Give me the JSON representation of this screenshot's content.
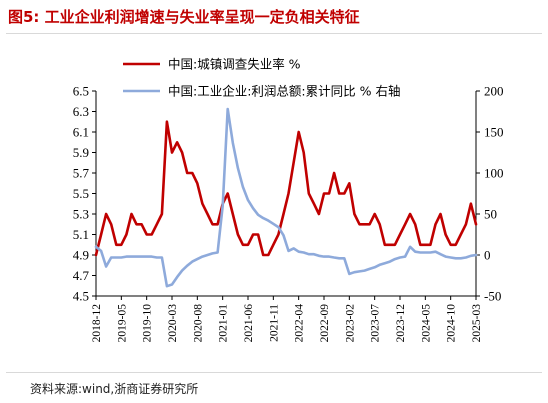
{
  "figure_title": "图5:   工业企业利润增速与失业率呈现一定负相关特征",
  "source": "资料来源:wind,浙商证券研究所",
  "colors": {
    "title": "#c00000",
    "unemployment": "#c00000",
    "profit": "#8eaadb"
  },
  "chart_data": {
    "type": "line",
    "x_ticks": [
      "2018-12",
      "2019-05",
      "2019-10",
      "2020-03",
      "2020-08",
      "2021-01",
      "2021-06",
      "2021-11",
      "2022-04",
      "2022-09",
      "2023-02",
      "2023-07",
      "2023-12",
      "2024-05",
      "2024-10",
      "2025-03"
    ],
    "y_left": {
      "min": 4.5,
      "max": 6.5,
      "ticks": [
        4.5,
        4.7,
        4.9,
        5.1,
        5.3,
        5.5,
        5.7,
        5.9,
        6.1,
        6.3,
        6.5
      ]
    },
    "y_right": {
      "min": -50,
      "max": 200,
      "ticks": [
        -50,
        0,
        50,
        100,
        150,
        200
      ]
    },
    "grid": false,
    "legend_position": "top",
    "series": [
      {
        "name": "中国:城镇调查失业率 %",
        "axis": "left",
        "values": [
          {
            "x": "2018-12",
            "y": 4.9
          },
          {
            "x": "2019-01",
            "y": 5.1
          },
          {
            "x": "2019-02",
            "y": 5.3
          },
          {
            "x": "2019-03",
            "y": 5.2
          },
          {
            "x": "2019-04",
            "y": 5.0
          },
          {
            "x": "2019-05",
            "y": 5.0
          },
          {
            "x": "2019-06",
            "y": 5.1
          },
          {
            "x": "2019-07",
            "y": 5.3
          },
          {
            "x": "2019-08",
            "y": 5.2
          },
          {
            "x": "2019-09",
            "y": 5.2
          },
          {
            "x": "2019-10",
            "y": 5.1
          },
          {
            "x": "2019-11",
            "y": 5.1
          },
          {
            "x": "2019-12",
            "y": 5.2
          },
          {
            "x": "2020-01",
            "y": 5.3
          },
          {
            "x": "2020-02",
            "y": 6.2
          },
          {
            "x": "2020-03",
            "y": 5.9
          },
          {
            "x": "2020-04",
            "y": 6.0
          },
          {
            "x": "2020-05",
            "y": 5.9
          },
          {
            "x": "2020-06",
            "y": 5.7
          },
          {
            "x": "2020-07",
            "y": 5.7
          },
          {
            "x": "2020-08",
            "y": 5.6
          },
          {
            "x": "2020-09",
            "y": 5.4
          },
          {
            "x": "2020-10",
            "y": 5.3
          },
          {
            "x": "2020-11",
            "y": 5.2
          },
          {
            "x": "2020-12",
            "y": 5.2
          },
          {
            "x": "2021-01",
            "y": 5.4
          },
          {
            "x": "2021-02",
            "y": 5.5
          },
          {
            "x": "2021-03",
            "y": 5.3
          },
          {
            "x": "2021-04",
            "y": 5.1
          },
          {
            "x": "2021-05",
            "y": 5.0
          },
          {
            "x": "2021-06",
            "y": 5.0
          },
          {
            "x": "2021-07",
            "y": 5.1
          },
          {
            "x": "2021-08",
            "y": 5.1
          },
          {
            "x": "2021-09",
            "y": 4.9
          },
          {
            "x": "2021-10",
            "y": 4.9
          },
          {
            "x": "2021-11",
            "y": 5.0
          },
          {
            "x": "2021-12",
            "y": 5.1
          },
          {
            "x": "2022-01",
            "y": 5.3
          },
          {
            "x": "2022-02",
            "y": 5.5
          },
          {
            "x": "2022-03",
            "y": 5.8
          },
          {
            "x": "2022-04",
            "y": 6.1
          },
          {
            "x": "2022-05",
            "y": 5.9
          },
          {
            "x": "2022-06",
            "y": 5.5
          },
          {
            "x": "2022-07",
            "y": 5.4
          },
          {
            "x": "2022-08",
            "y": 5.3
          },
          {
            "x": "2022-09",
            "y": 5.5
          },
          {
            "x": "2022-10",
            "y": 5.5
          },
          {
            "x": "2022-11",
            "y": 5.7
          },
          {
            "x": "2022-12",
            "y": 5.5
          },
          {
            "x": "2023-01",
            "y": 5.5
          },
          {
            "x": "2023-02",
            "y": 5.6
          },
          {
            "x": "2023-03",
            "y": 5.3
          },
          {
            "x": "2023-04",
            "y": 5.2
          },
          {
            "x": "2023-05",
            "y": 5.2
          },
          {
            "x": "2023-06",
            "y": 5.2
          },
          {
            "x": "2023-07",
            "y": 5.3
          },
          {
            "x": "2023-08",
            "y": 5.2
          },
          {
            "x": "2023-09",
            "y": 5.0
          },
          {
            "x": "2023-10",
            "y": 5.0
          },
          {
            "x": "2023-11",
            "y": 5.0
          },
          {
            "x": "2023-12",
            "y": 5.1
          },
          {
            "x": "2024-01",
            "y": 5.2
          },
          {
            "x": "2024-02",
            "y": 5.3
          },
          {
            "x": "2024-03",
            "y": 5.2
          },
          {
            "x": "2024-04",
            "y": 5.0
          },
          {
            "x": "2024-05",
            "y": 5.0
          },
          {
            "x": "2024-06",
            "y": 5.0
          },
          {
            "x": "2024-07",
            "y": 5.2
          },
          {
            "x": "2024-08",
            "y": 5.3
          },
          {
            "x": "2024-09",
            "y": 5.1
          },
          {
            "x": "2024-10",
            "y": 5.0
          },
          {
            "x": "2024-11",
            "y": 5.0
          },
          {
            "x": "2024-12",
            "y": 5.1
          },
          {
            "x": "2025-01",
            "y": 5.2
          },
          {
            "x": "2025-02",
            "y": 5.4
          },
          {
            "x": "2025-03",
            "y": 5.2
          }
        ]
      },
      {
        "name": "中国:工业企业:利润总额:累计同比 % 右轴",
        "axis": "right",
        "values": [
          {
            "x": "2018-12",
            "y": 10
          },
          {
            "x": "2019-01",
            "y": 5
          },
          {
            "x": "2019-02",
            "y": -14
          },
          {
            "x": "2019-03",
            "y": -3
          },
          {
            "x": "2019-04",
            "y": -3
          },
          {
            "x": "2019-05",
            "y": -3
          },
          {
            "x": "2019-06",
            "y": -2
          },
          {
            "x": "2019-07",
            "y": -2
          },
          {
            "x": "2019-08",
            "y": -2
          },
          {
            "x": "2019-09",
            "y": -2
          },
          {
            "x": "2019-10",
            "y": -2
          },
          {
            "x": "2019-11",
            "y": -2
          },
          {
            "x": "2019-12",
            "y": -3
          },
          {
            "x": "2020-01",
            "y": -3
          },
          {
            "x": "2020-02",
            "y": -38
          },
          {
            "x": "2020-03",
            "y": -36
          },
          {
            "x": "2020-04",
            "y": -27
          },
          {
            "x": "2020-05",
            "y": -19
          },
          {
            "x": "2020-06",
            "y": -13
          },
          {
            "x": "2020-07",
            "y": -8
          },
          {
            "x": "2020-08",
            "y": -5
          },
          {
            "x": "2020-09",
            "y": -2
          },
          {
            "x": "2020-10",
            "y": 0
          },
          {
            "x": "2020-11",
            "y": 2
          },
          {
            "x": "2020-12",
            "y": 3
          },
          {
            "x": "2021-01",
            "y": 60
          },
          {
            "x": "2021-02",
            "y": 178
          },
          {
            "x": "2021-03",
            "y": 137
          },
          {
            "x": "2021-04",
            "y": 106
          },
          {
            "x": "2021-05",
            "y": 83
          },
          {
            "x": "2021-06",
            "y": 67
          },
          {
            "x": "2021-07",
            "y": 57
          },
          {
            "x": "2021-08",
            "y": 49
          },
          {
            "x": "2021-09",
            "y": 45
          },
          {
            "x": "2021-10",
            "y": 42
          },
          {
            "x": "2021-11",
            "y": 38
          },
          {
            "x": "2021-12",
            "y": 34
          },
          {
            "x": "2022-01",
            "y": 24
          },
          {
            "x": "2022-02",
            "y": 5
          },
          {
            "x": "2022-03",
            "y": 8
          },
          {
            "x": "2022-04",
            "y": 4
          },
          {
            "x": "2022-05",
            "y": 3
          },
          {
            "x": "2022-06",
            "y": 1
          },
          {
            "x": "2022-07",
            "y": 1
          },
          {
            "x": "2022-08",
            "y": -1
          },
          {
            "x": "2022-09",
            "y": -2
          },
          {
            "x": "2022-10",
            "y": -2
          },
          {
            "x": "2022-11",
            "y": -3
          },
          {
            "x": "2022-12",
            "y": -4
          },
          {
            "x": "2023-01",
            "y": -4
          },
          {
            "x": "2023-02",
            "y": -23
          },
          {
            "x": "2023-03",
            "y": -21
          },
          {
            "x": "2023-04",
            "y": -20
          },
          {
            "x": "2023-05",
            "y": -19
          },
          {
            "x": "2023-06",
            "y": -17
          },
          {
            "x": "2023-07",
            "y": -15
          },
          {
            "x": "2023-08",
            "y": -12
          },
          {
            "x": "2023-09",
            "y": -10
          },
          {
            "x": "2023-10",
            "y": -8
          },
          {
            "x": "2023-11",
            "y": -5
          },
          {
            "x": "2023-12",
            "y": -3
          },
          {
            "x": "2024-01",
            "y": -2
          },
          {
            "x": "2024-02",
            "y": 10
          },
          {
            "x": "2024-03",
            "y": 4
          },
          {
            "x": "2024-04",
            "y": 3
          },
          {
            "x": "2024-05",
            "y": 3
          },
          {
            "x": "2024-06",
            "y": 3
          },
          {
            "x": "2024-07",
            "y": 4
          },
          {
            "x": "2024-08",
            "y": 1
          },
          {
            "x": "2024-09",
            "y": -2
          },
          {
            "x": "2024-10",
            "y": -3
          },
          {
            "x": "2024-11",
            "y": -4
          },
          {
            "x": "2024-12",
            "y": -4
          },
          {
            "x": "2025-01",
            "y": -3
          },
          {
            "x": "2025-02",
            "y": -1
          },
          {
            "x": "2025-03",
            "y": 0
          }
        ]
      }
    ]
  }
}
